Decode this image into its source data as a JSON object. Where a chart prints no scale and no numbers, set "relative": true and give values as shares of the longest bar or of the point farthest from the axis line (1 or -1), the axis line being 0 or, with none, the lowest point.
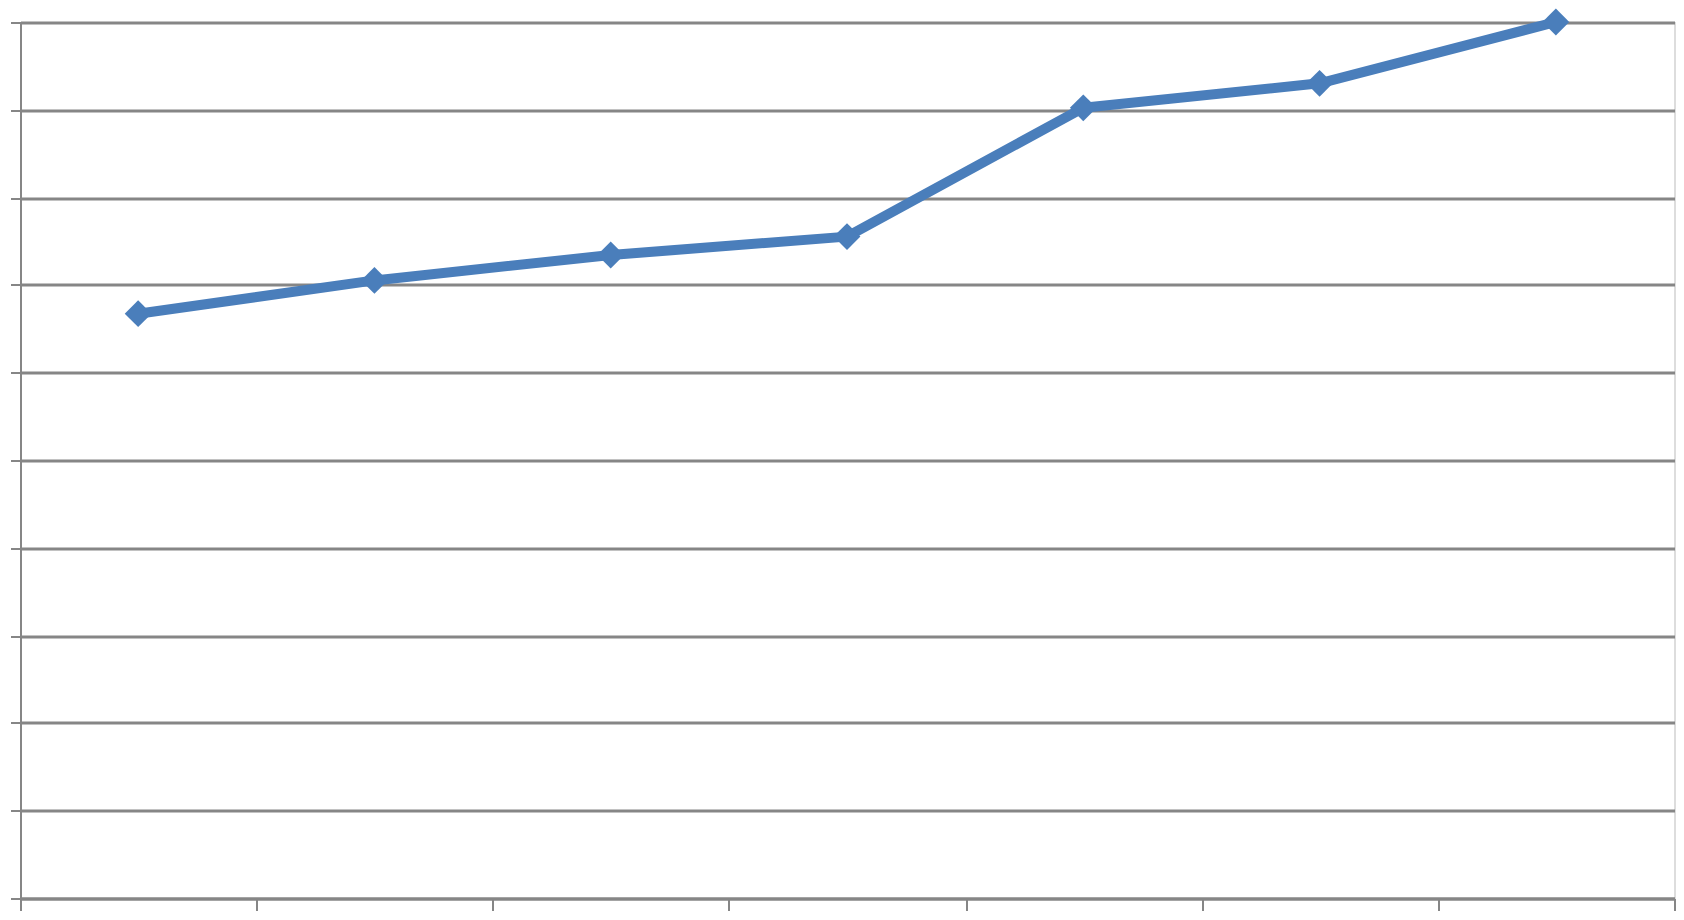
{
  "chart_data": {
    "type": "line",
    "relative": true,
    "categories": [
      null,
      null,
      null,
      null,
      null,
      null,
      null
    ],
    "series": [
      {
        "color": "#4a7ebb",
        "values": [
          0.667,
          0.705,
          0.734,
          0.755,
          0.902,
          0.93,
          1.0
        ]
      }
    ],
    "marker": "diamond",
    "line_style": "solid",
    "grid": "y"
  }
}
